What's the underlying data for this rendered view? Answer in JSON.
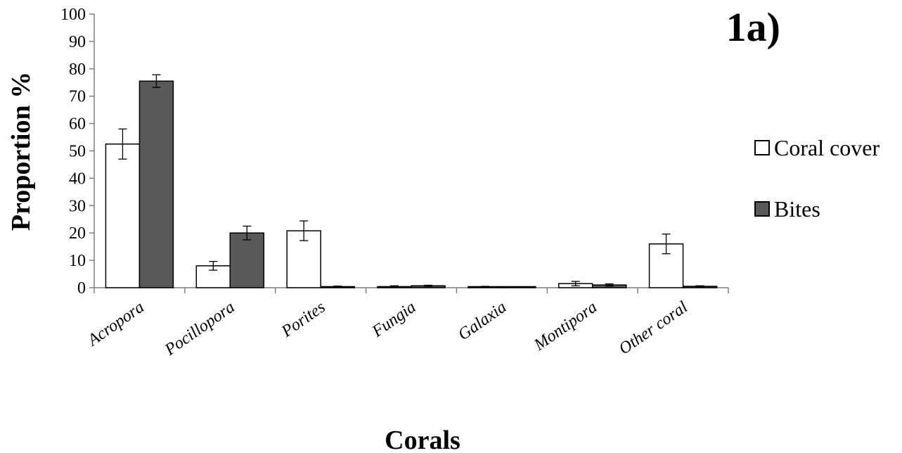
{
  "chart_data": {
    "type": "bar",
    "panel_label": "1a)",
    "title": "",
    "xlabel": "Corals",
    "ylabel": "Proportion %",
    "ylim": [
      0,
      100
    ],
    "yticks": [
      0,
      10,
      20,
      30,
      40,
      50,
      60,
      70,
      80,
      90,
      100
    ],
    "categories": [
      "Acropora",
      "Pocillopora",
      "Porites",
      "Fungia",
      "Galaxia",
      "Montipora",
      "Other coral"
    ],
    "series": [
      {
        "name": "Coral cover",
        "color": "#ffffff",
        "values": [
          52.5,
          8.0,
          20.8,
          0.4,
          0.3,
          1.5,
          16.0
        ],
        "errors": [
          5.5,
          1.6,
          3.6,
          0.3,
          0.2,
          0.8,
          3.6
        ]
      },
      {
        "name": "Bites",
        "color": "#595959",
        "values": [
          75.5,
          20.0,
          0.4,
          0.7,
          0.2,
          1.0,
          0.5
        ],
        "errors": [
          2.3,
          2.5,
          0.2,
          0.2,
          0.1,
          0.4,
          0.2
        ]
      }
    ],
    "legend_position": "right",
    "grid": false
  }
}
